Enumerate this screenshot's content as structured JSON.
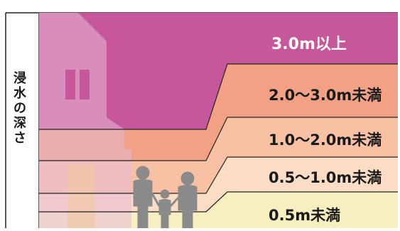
{
  "axis_title": [
    "浸",
    "水",
    "の",
    "深",
    "さ"
  ],
  "bands": [
    {
      "label": "3.0m以上",
      "color": "#c7579b",
      "text_color": "#ffffff"
    },
    {
      "label": "2.0〜3.0m未満",
      "color": "#f2a184",
      "text_color": "#1a1a1a"
    },
    {
      "label": "1.0〜2.0m未満",
      "color": "#f8c1a4",
      "text_color": "#1a1a1a"
    },
    {
      "label": "0.5〜1.0m未満",
      "color": "#fbdcc4",
      "text_color": "#1a1a1a"
    },
    {
      "label": "0.5m未満",
      "color": "#f8efc0",
      "text_color": "#1a1a1a"
    }
  ],
  "colors": {
    "house": "#e6b9d6",
    "house_window": "#c7579b",
    "people": "#8a8a8a",
    "lines": "#222222"
  },
  "icons": [
    "house-icon",
    "family-icon"
  ]
}
